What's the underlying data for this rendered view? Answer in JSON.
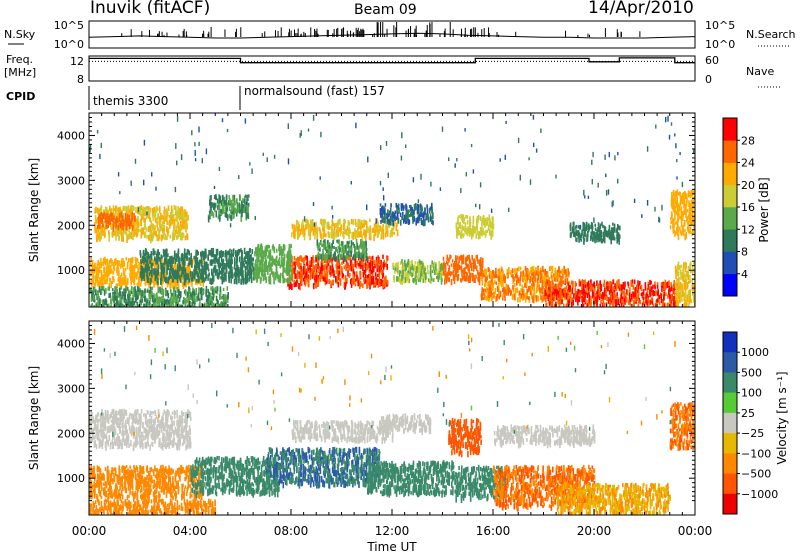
{
  "header": {
    "station": "Inuvik (fitACF)",
    "beam": "Beam 09",
    "date": "14/Apr/2010"
  },
  "noise_panel": {
    "left_label": "N.Sky",
    "right_label": "N.Search",
    "left_ticks": [
      "10^5",
      "10^0"
    ],
    "right_ticks": [
      "10^5",
      "10^0"
    ]
  },
  "freq_panel": {
    "left_label_1": "Freq.",
    "left_label_2": "[MHz]",
    "right_label": "Nave",
    "left_ticks": [
      "12",
      "8"
    ],
    "right_ticks": [
      "60",
      "0"
    ]
  },
  "cpid_panel": {
    "label": "CPID",
    "segments": [
      {
        "text": "themis 3300",
        "start_hour": 0,
        "end_hour": 6
      },
      {
        "text": "normalsound (fast) 157",
        "start_hour": 6,
        "end_hour": 24
      }
    ]
  },
  "colors": {
    "power_scale": [
      "#0000ff",
      "#1f4fb4",
      "#2f7a5a",
      "#5aaa4a",
      "#cccc33",
      "#ffaa00",
      "#ff6600",
      "#ff0000"
    ],
    "velocity_scale": [
      "#1030c0",
      "#2a5aa8",
      "#3a8a6a",
      "#55cc33",
      "#c8c8c0",
      "#e6b800",
      "#ff8800",
      "#ff5500",
      "#ee0000"
    ]
  },
  "chart_data": [
    {
      "type": "heatmap",
      "panel": "power",
      "ylabel": "Slant Range [km]",
      "ylim": [
        180,
        4500
      ],
      "yticks": [
        "1000",
        "2000",
        "3000",
        "4000"
      ],
      "xlim": [
        0,
        24
      ],
      "colorbar": {
        "label": "Power [dB]",
        "ticks": [
          "4",
          "8",
          "12",
          "16",
          "20",
          "24",
          "28"
        ],
        "range": [
          0,
          32
        ]
      },
      "regions": [
        {
          "t0": 0.2,
          "t1": 3.9,
          "r0": 1750,
          "r1": 2450,
          "value": 20
        },
        {
          "t0": 0.3,
          "t1": 1.8,
          "r0": 2000,
          "r1": 2300,
          "value": 26
        },
        {
          "t0": 0.0,
          "t1": 4.5,
          "r0": 700,
          "r1": 1300,
          "value": 22
        },
        {
          "t0": 0.0,
          "t1": 5.5,
          "r0": 180,
          "r1": 650,
          "value": 12
        },
        {
          "t0": 2.0,
          "t1": 6.5,
          "r0": 800,
          "r1": 1500,
          "value": 10
        },
        {
          "t0": 4.7,
          "t1": 6.3,
          "r0": 2200,
          "r1": 2700,
          "value": 12
        },
        {
          "t0": 7.8,
          "t1": 11.8,
          "r0": 700,
          "r1": 1350,
          "value": 28
        },
        {
          "t0": 6.5,
          "t1": 8.0,
          "r0": 800,
          "r1": 1600,
          "value": 14
        },
        {
          "t0": 8.0,
          "t1": 12.2,
          "r0": 1800,
          "r1": 2150,
          "value": 20
        },
        {
          "t0": 9.0,
          "t1": 11.0,
          "r0": 1300,
          "r1": 1700,
          "value": 12
        },
        {
          "t0": 11.5,
          "t1": 13.6,
          "r0": 2100,
          "r1": 2500,
          "value": 8
        },
        {
          "t0": 12.0,
          "t1": 14.0,
          "r0": 800,
          "r1": 1250,
          "value": 16
        },
        {
          "t0": 14.0,
          "t1": 15.6,
          "r0": 800,
          "r1": 1350,
          "value": 26
        },
        {
          "t0": 14.5,
          "t1": 16.0,
          "r0": 1800,
          "r1": 2250,
          "value": 18
        },
        {
          "t0": 15.5,
          "t1": 19.0,
          "r0": 400,
          "r1": 1100,
          "value": 24
        },
        {
          "t0": 18.0,
          "t1": 23.3,
          "r0": 250,
          "r1": 800,
          "value": 28
        },
        {
          "t0": 19.0,
          "t1": 21.0,
          "r0": 1700,
          "r1": 2100,
          "value": 10
        },
        {
          "t0": 23.0,
          "t1": 24.0,
          "r0": 1800,
          "r1": 2800,
          "value": 22
        },
        {
          "t0": 23.2,
          "t1": 24.0,
          "r0": 250,
          "r1": 1200,
          "value": 20
        }
      ]
    },
    {
      "type": "heatmap",
      "panel": "velocity",
      "ylabel": "Slant Range [km]",
      "xlabel": "Time UT",
      "ylim": [
        180,
        4500
      ],
      "yticks": [
        "1000",
        "2000",
        "3000",
        "4000"
      ],
      "xticks": [
        "00:00",
        "04:00",
        "08:00",
        "12:00",
        "16:00",
        "20:00",
        "00:00"
      ],
      "xlim": [
        0,
        24
      ],
      "colorbar": {
        "label": "Velocity [m s⁻¹]",
        "ticks": [
          "1000",
          "500",
          "100",
          "25",
          "−25",
          "−100",
          "−500",
          "−1000"
        ]
      },
      "regions": [
        {
          "t0": 0.0,
          "t1": 4.0,
          "r0": 1750,
          "r1": 2550,
          "value": 0
        },
        {
          "t0": 0.0,
          "t1": 4.5,
          "r0": 600,
          "r1": 1300,
          "value": -200
        },
        {
          "t0": 0.0,
          "t1": 5.0,
          "r0": 180,
          "r1": 550,
          "value": -80
        },
        {
          "t0": 4.0,
          "t1": 7.5,
          "r0": 700,
          "r1": 1500,
          "value": 150
        },
        {
          "t0": 7.0,
          "t1": 11.5,
          "r0": 900,
          "r1": 1700,
          "value": 300
        },
        {
          "t0": 8.0,
          "t1": 12.0,
          "r0": 1900,
          "r1": 2300,
          "value": 0
        },
        {
          "t0": 11.5,
          "t1": 13.5,
          "r0": 2100,
          "r1": 2450,
          "value": 0
        },
        {
          "t0": 11.0,
          "t1": 14.5,
          "r0": 700,
          "r1": 1400,
          "value": 200
        },
        {
          "t0": 14.2,
          "t1": 15.5,
          "r0": 1600,
          "r1": 2350,
          "value": -400
        },
        {
          "t0": 14.5,
          "t1": 16.5,
          "r0": 600,
          "r1": 1300,
          "value": 150
        },
        {
          "t0": 16.0,
          "t1": 20.0,
          "r0": 400,
          "r1": 1300,
          "value": -300
        },
        {
          "t0": 18.5,
          "t1": 23.0,
          "r0": 250,
          "r1": 900,
          "value": -60
        },
        {
          "t0": 16.0,
          "t1": 20.0,
          "r0": 1800,
          "r1": 2200,
          "value": 0
        },
        {
          "t0": 23.0,
          "t1": 24.0,
          "r0": 1700,
          "r1": 2700,
          "value": -300
        }
      ]
    },
    {
      "type": "line",
      "panel": "noise",
      "series": [
        {
          "name": "N.Sky",
          "style": "solid",
          "x": [
            0,
            1,
            2,
            3,
            4,
            5,
            6,
            7,
            8,
            9,
            10,
            11,
            12,
            13,
            14,
            15,
            16,
            17,
            18,
            19,
            20,
            21,
            22,
            23,
            24
          ],
          "y": [
            0.35,
            0.4,
            0.45,
            0.4,
            0.35,
            0.3,
            0.3,
            0.35,
            0.4,
            0.45,
            0.5,
            0.55,
            0.6,
            0.65,
            0.6,
            0.5,
            0.45,
            0.4,
            0.35,
            0.35,
            0.3,
            0.3,
            0.3,
            0.35,
            0.4
          ]
        }
      ]
    },
    {
      "type": "line",
      "panel": "frequency",
      "series": [
        {
          "name": "Freq.",
          "style": "solid",
          "x": [
            0,
            6,
            6,
            12,
            12,
            15.3,
            15.3,
            19.8,
            19.8,
            21,
            21,
            23.2,
            23.2,
            24
          ],
          "y": [
            12.3,
            12.3,
            11.4,
            11.4,
            11.4,
            11.4,
            12.3,
            12.3,
            11.6,
            11.6,
            12.4,
            12.4,
            11.4,
            11.4
          ]
        },
        {
          "name": "Nave",
          "style": "dotted",
          "x": [
            0,
            24
          ],
          "y": [
            47,
            47
          ]
        }
      ]
    }
  ]
}
